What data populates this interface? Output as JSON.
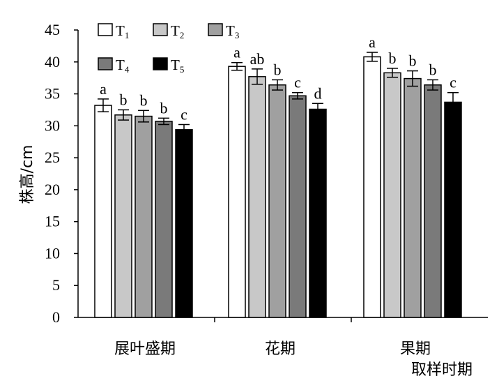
{
  "chart_data": {
    "type": "bar",
    "title": "",
    "xlabel": "取样时期",
    "ylabel": "株高/cm",
    "ylim": [
      0,
      45
    ],
    "yticks": [
      0,
      5,
      10,
      15,
      20,
      25,
      30,
      35,
      40,
      45
    ],
    "categories": [
      "展叶盛期",
      "花期",
      "果期"
    ],
    "legend_position": "top-left",
    "grid": false,
    "series": [
      {
        "name": "T",
        "sub": "1",
        "color": "#ffffff",
        "values": [
          33.2,
          39.3,
          40.8
        ],
        "errors": [
          1.0,
          0.6,
          0.7
        ],
        "labels": [
          "a",
          "a",
          "a"
        ]
      },
      {
        "name": "T",
        "sub": "2",
        "color": "#c8c8c8",
        "values": [
          31.7,
          37.7,
          38.3
        ],
        "errors": [
          0.8,
          1.2,
          0.7
        ],
        "labels": [
          "b",
          "ab",
          "b"
        ]
      },
      {
        "name": "T",
        "sub": "3",
        "color": "#a0a0a0",
        "values": [
          31.5,
          36.4,
          37.4
        ],
        "errors": [
          0.9,
          0.8,
          1.2
        ],
        "labels": [
          "b",
          "b",
          "b"
        ]
      },
      {
        "name": "T",
        "sub": "4",
        "color": "#7a7a7a",
        "values": [
          30.7,
          34.7,
          36.4
        ],
        "errors": [
          0.5,
          0.5,
          0.8
        ],
        "labels": [
          "b",
          "c",
          "b"
        ]
      },
      {
        "name": "T",
        "sub": "5",
        "color": "#000000",
        "values": [
          29.4,
          32.6,
          33.7
        ],
        "errors": [
          0.8,
          0.9,
          1.5
        ],
        "labels": [
          "c",
          "d",
          "c"
        ]
      }
    ]
  }
}
